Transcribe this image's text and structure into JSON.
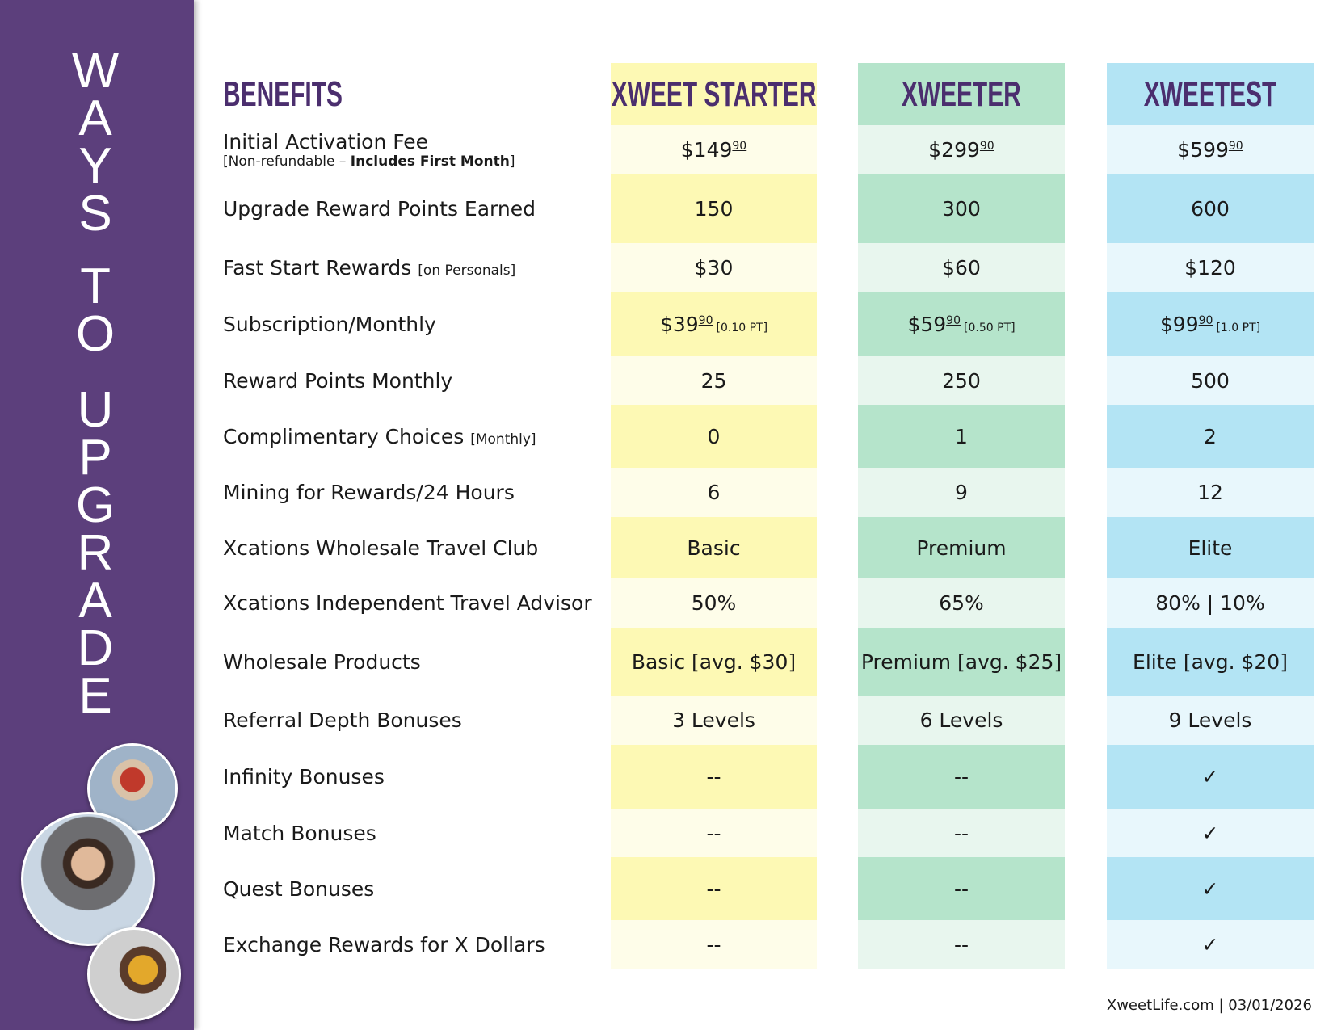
{
  "sidebar": {
    "words": [
      "WAYS",
      "TO",
      "UPGRADE"
    ]
  },
  "table": {
    "benefits_header": "BENEFITS",
    "plans": [
      "XWEET STARTER",
      "XWEETER",
      "XWEETEST"
    ],
    "rows": [
      {
        "label": "Initial Activation Fee",
        "note_prefix": "[Non-refundable – ",
        "note_bold": "Includes First Month",
        "note_suffix": "]",
        "cells": [
          {
            "main": "$149",
            "cents": "90"
          },
          {
            "main": "$299",
            "cents": "90"
          },
          {
            "main": "$599",
            "cents": "90"
          }
        ]
      },
      {
        "label": "Upgrade Reward Points Earned",
        "cells": [
          {
            "main": "150"
          },
          {
            "main": "300"
          },
          {
            "main": "600"
          }
        ]
      },
      {
        "label": "Fast Start Rewards",
        "note_inline": "[on Personals]",
        "cells": [
          {
            "main": "$30"
          },
          {
            "main": "$60"
          },
          {
            "main": "$120"
          }
        ]
      },
      {
        "label": "Subscription/Monthly",
        "cells": [
          {
            "main": "$39",
            "cents": "90",
            "pt": "[0.10 PT]"
          },
          {
            "main": "$59",
            "cents": "90",
            "pt": "[0.50 PT]"
          },
          {
            "main": "$99",
            "cents": "90",
            "pt": "[1.0 PT]"
          }
        ]
      },
      {
        "label": "Reward Points Monthly",
        "cells": [
          {
            "main": "25"
          },
          {
            "main": "250"
          },
          {
            "main": "500"
          }
        ]
      },
      {
        "label": "Complimentary Choices",
        "note_inline": "[Monthly]",
        "cells": [
          {
            "main": "0"
          },
          {
            "main": "1"
          },
          {
            "main": "2"
          }
        ]
      },
      {
        "label": "Mining for Rewards/24 Hours",
        "cells": [
          {
            "main": "6"
          },
          {
            "main": "9"
          },
          {
            "main": "12"
          }
        ]
      },
      {
        "label": "Xcations Wholesale Travel Club",
        "cells": [
          {
            "main": "Basic"
          },
          {
            "main": "Premium"
          },
          {
            "main": "Elite"
          }
        ]
      },
      {
        "label": "Xcations Independent Travel Advisor",
        "cells": [
          {
            "main": "50%"
          },
          {
            "main": "65%"
          },
          {
            "main": "80% | 10%"
          }
        ]
      },
      {
        "label": "Wholesale Products",
        "cells": [
          {
            "main": "Basic [avg. $30]"
          },
          {
            "main": "Premium [avg. $25]"
          },
          {
            "main": "Elite [avg. $20]"
          }
        ]
      },
      {
        "label": "Referral Depth Bonuses",
        "cells": [
          {
            "main": "3 Levels"
          },
          {
            "main": "6 Levels"
          },
          {
            "main": "9 Levels"
          }
        ]
      },
      {
        "label": "Infinity Bonuses",
        "cells": [
          {
            "main": "--"
          },
          {
            "main": "--"
          },
          {
            "main": "✓"
          }
        ]
      },
      {
        "label": "Match Bonuses",
        "cells": [
          {
            "main": "--"
          },
          {
            "main": "--"
          },
          {
            "main": "✓"
          }
        ]
      },
      {
        "label": "Quest Bonuses",
        "cells": [
          {
            "main": "--"
          },
          {
            "main": "--"
          },
          {
            "main": "✓"
          }
        ]
      },
      {
        "label": "Exchange Rewards for X Dollars",
        "cells": [
          {
            "main": "--"
          },
          {
            "main": "--"
          },
          {
            "main": "✓"
          }
        ]
      }
    ]
  },
  "footer": "XweetLife.com | 03/01/2026"
}
